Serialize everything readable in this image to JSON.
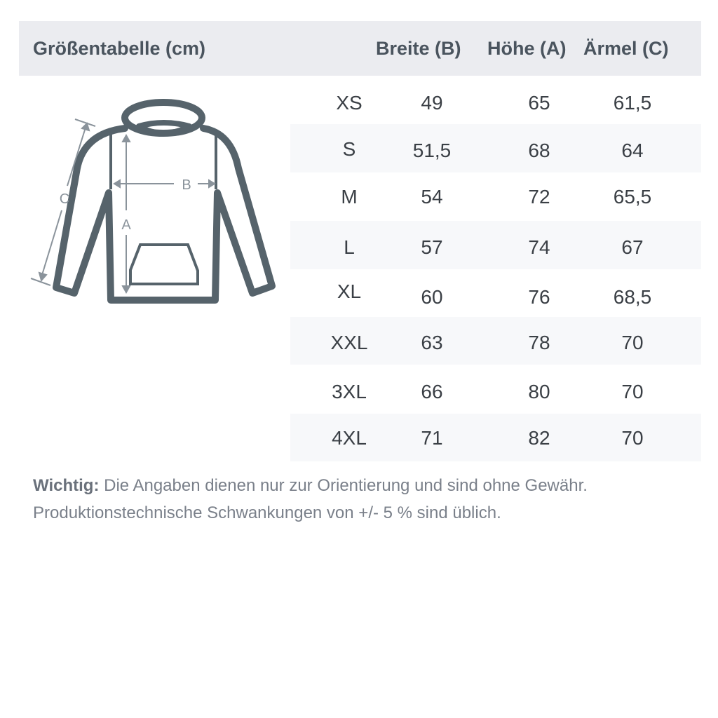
{
  "header": {
    "title": "Größentabelle (cm)",
    "columns": [
      "Breite (B)",
      "Höhe (A)",
      "Ärmel (C)"
    ]
  },
  "rows": [
    {
      "size": "XS",
      "b": "49",
      "a": "65",
      "c": "61,5"
    },
    {
      "size": "S",
      "b": "51,5",
      "a": "68",
      "c": "64"
    },
    {
      "size": "M",
      "b": "54",
      "a": "72",
      "c": "65,5"
    },
    {
      "size": "L",
      "b": "57",
      "a": "74",
      "c": "67"
    },
    {
      "size": "XL",
      "b": "60",
      "a": "76",
      "c": "68,5"
    },
    {
      "size": "XXL",
      "b": "63",
      "a": "78",
      "c": "70"
    },
    {
      "size": "3XL",
      "b": "66",
      "a": "80",
      "c": "70"
    },
    {
      "size": "4XL",
      "b": "71",
      "a": "82",
      "c": "70"
    }
  ],
  "diagram": {
    "label_a": "A",
    "label_b": "B",
    "label_c": "C"
  },
  "note": {
    "bold": "Wichtig:",
    "line1": " Die Angaben dienen nur zur Orientierung und sind ohne Gewähr.",
    "line2": "Produktionstechnische Schwankungen von +/- 5 % sind üblich."
  },
  "colors": {
    "header_bg": "#ebecf0",
    "stripe": "#f7f8fa",
    "hoodie": "#56636b",
    "dimension": "#8a939b"
  }
}
